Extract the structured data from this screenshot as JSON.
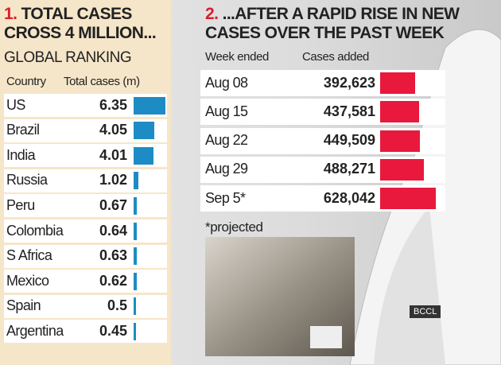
{
  "watermark": "BCCL",
  "chart_data": [
    {
      "type": "bar",
      "panel_number": "1.",
      "title": "TOTAL CASES CROSS 4 MILLION...",
      "subtitle": "GLOBAL RANKING",
      "category_header": "Country",
      "value_header": "Total cases (m)",
      "categories": [
        "US",
        "Brazil",
        "India",
        "Russia",
        "Peru",
        "Colombia",
        "S Africa",
        "Mexico",
        "Spain",
        "Argentina"
      ],
      "values": [
        6.35,
        4.05,
        4.01,
        1.02,
        0.67,
        0.64,
        0.63,
        0.62,
        0.5,
        0.45
      ],
      "color": "#1d8cc4"
    },
    {
      "type": "bar",
      "panel_number": "2.",
      "title": "...AFTER A RAPID RISE IN NEW CASES OVER THE PAST WEEK",
      "category_header": "Week ended",
      "value_header": "Cases added",
      "categories": [
        "Aug 08",
        "Aug 15",
        "Aug 22",
        "Aug 29",
        "Sep 5*"
      ],
      "values": [
        392623,
        437581,
        449509,
        488271,
        628042
      ],
      "value_labels": [
        "392,623",
        "437,581",
        "449,509",
        "488,271",
        "628,042"
      ],
      "color": "#e8193c",
      "note": "*projected"
    }
  ]
}
